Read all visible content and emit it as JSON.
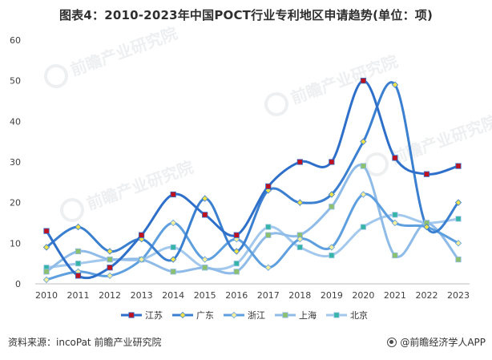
{
  "title": "图表4：2010-2023年中国POCT行业专利地区申请趋势(单位：项)",
  "source": "资料来源：incoPat 前瞻产业研究院",
  "brand": "@前瞻经济学人APP",
  "watermark": "前瞻产业研究院",
  "chart_data": {
    "type": "line",
    "title": "图表4：2010-2023年中国POCT行业专利地区申请趋势(单位：项)",
    "xlabel": "",
    "ylabel": "",
    "categories": [
      "2010",
      "2011",
      "2012",
      "2013",
      "2014",
      "2015",
      "2016",
      "2017",
      "2018",
      "2019",
      "2020",
      "2021",
      "2022",
      "2023"
    ],
    "ylim": [
      0,
      60
    ],
    "yticks": [
      0,
      10,
      20,
      30,
      40,
      50,
      60
    ],
    "grid": false,
    "legend": "bottom",
    "series": [
      {
        "name": "江苏",
        "values": [
          13,
          2,
          4,
          12,
          22,
          17,
          12,
          24,
          30,
          30,
          50,
          31,
          27,
          29
        ],
        "color": "#2E6FCA",
        "marker": "square",
        "marker_color": "#C0111F"
      },
      {
        "name": "广东",
        "values": [
          9,
          14,
          8,
          11,
          6,
          21,
          8,
          23,
          20,
          22,
          35,
          49,
          14,
          20
        ],
        "color": "#3A7FD0",
        "marker": "diamond",
        "marker_color": "#F0E24A"
      },
      {
        "name": "浙江",
        "values": [
          1,
          3,
          2,
          6,
          15,
          6,
          11,
          4,
          11,
          9,
          22,
          15,
          14,
          10
        ],
        "color": "#5E9FE0",
        "marker": "diamond",
        "marker_color": "#F5EE9A"
      },
      {
        "name": "上海",
        "values": [
          3,
          8,
          6,
          6,
          3,
          4,
          3,
          12,
          12,
          19,
          29,
          7,
          15,
          6
        ],
        "color": "#8EBBE8",
        "marker": "square",
        "marker_color": "#8CC06E"
      },
      {
        "name": "北京",
        "values": [
          4,
          5,
          6,
          6,
          9,
          4,
          5,
          14,
          9,
          7,
          14,
          17,
          15,
          16
        ],
        "color": "#A3C8EE",
        "marker": "square",
        "marker_color": "#36B4A6"
      }
    ]
  }
}
